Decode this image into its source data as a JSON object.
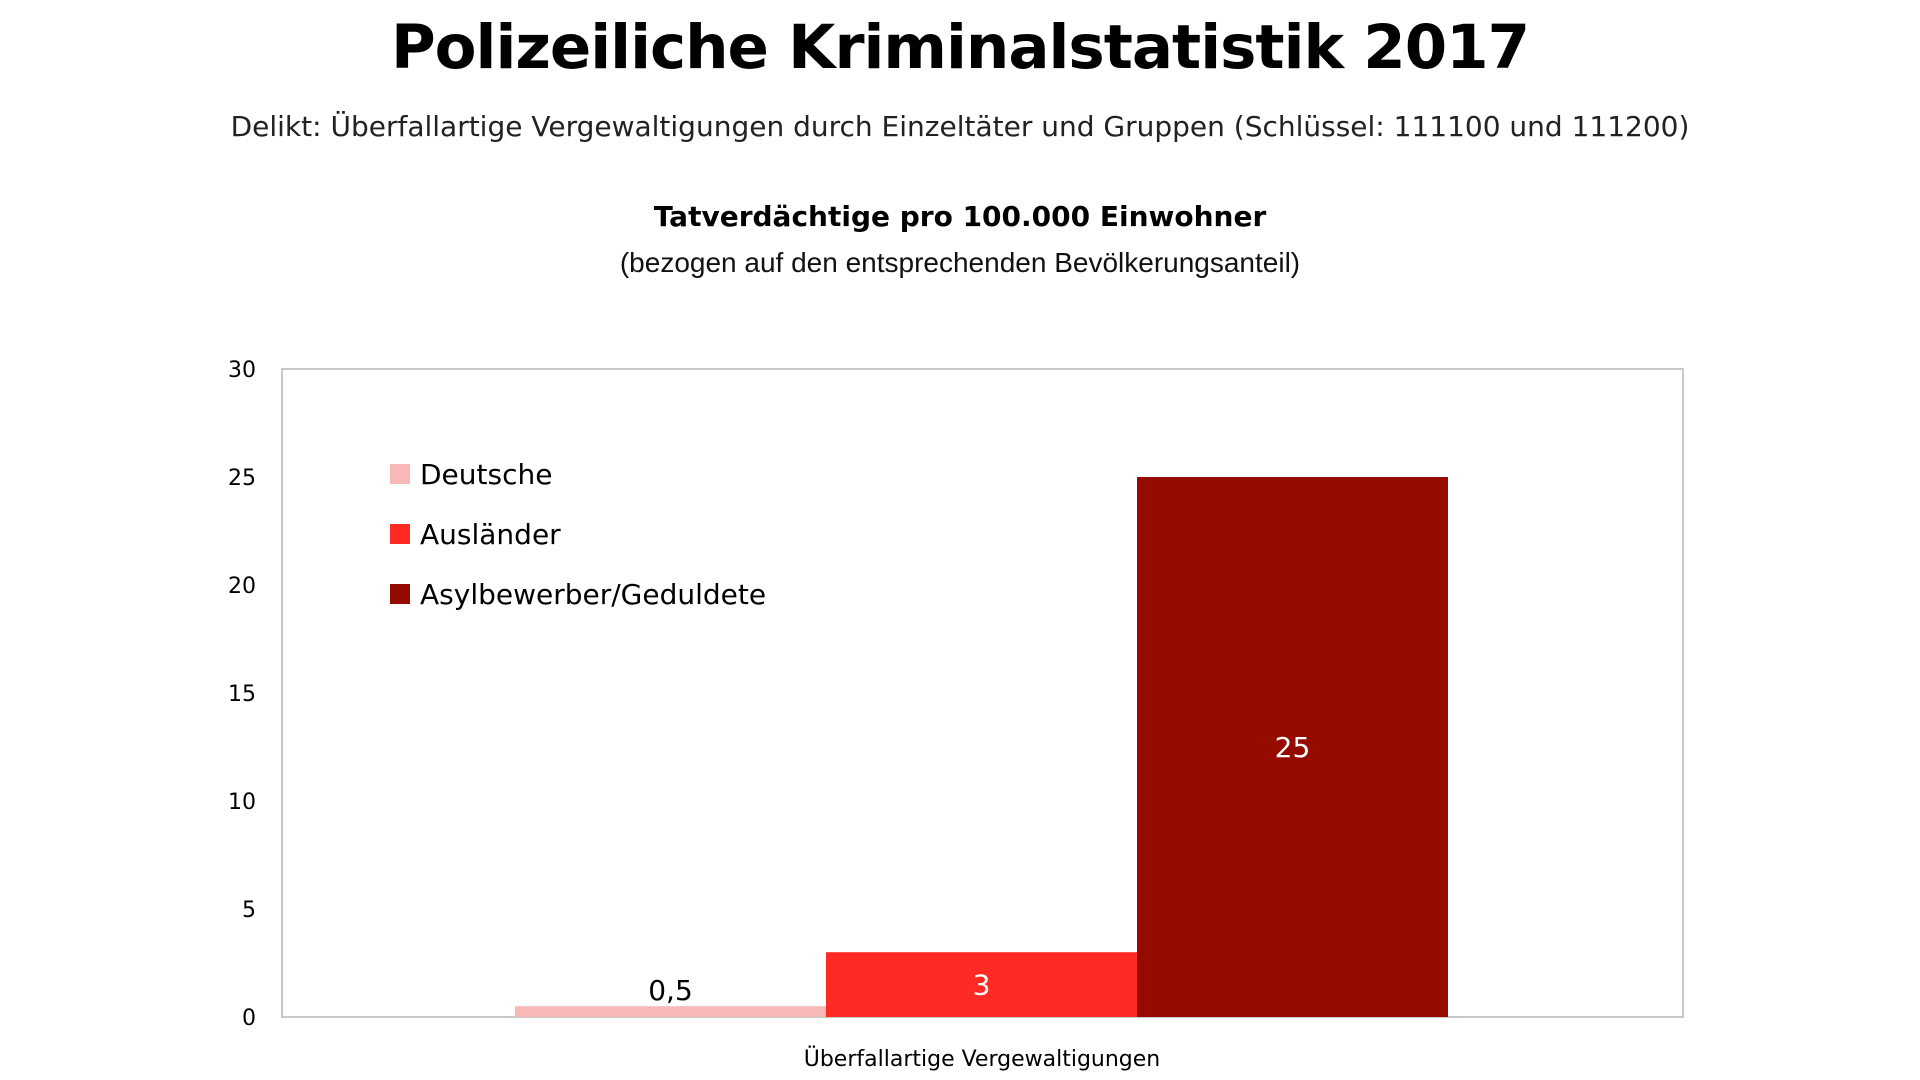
{
  "header": {
    "title": "Polizeiliche Kriminalstatistik 2017",
    "subtitle": "Delikt: Überfallartige Vergewaltigungen durch Einzeltäter und Gruppen (Schlüssel: 111100 und 111200)"
  },
  "chart_data": {
    "type": "bar",
    "title": "Tatverdächtige pro 100.000 Einwohner",
    "subtitle": "(bezogen auf den entsprechenden Bevölkerungsanteil)",
    "categories": [
      "Überfallartige Vergewaltigungen"
    ],
    "series": [
      {
        "name": "Deutsche",
        "values": [
          0.5
        ],
        "label": "0,5",
        "color": "#f9b8b8",
        "label_color": "#000000"
      },
      {
        "name": "Ausländer",
        "values": [
          3
        ],
        "label": "3",
        "color": "#ff2a23",
        "label_color": "#ffffff"
      },
      {
        "name": "Asylbewerber/Geduldete",
        "values": [
          25
        ],
        "label": "25",
        "color": "#960b00",
        "label_color": "#ffffff"
      }
    ],
    "xlabel": "",
    "ylabel": "",
    "ylim": [
      0,
      30
    ],
    "yticks": [
      0,
      5,
      10,
      15,
      20,
      25,
      30
    ],
    "grid": false,
    "legend_position": "top-left"
  },
  "colors": {
    "plot_border": "#c8c8c8"
  }
}
